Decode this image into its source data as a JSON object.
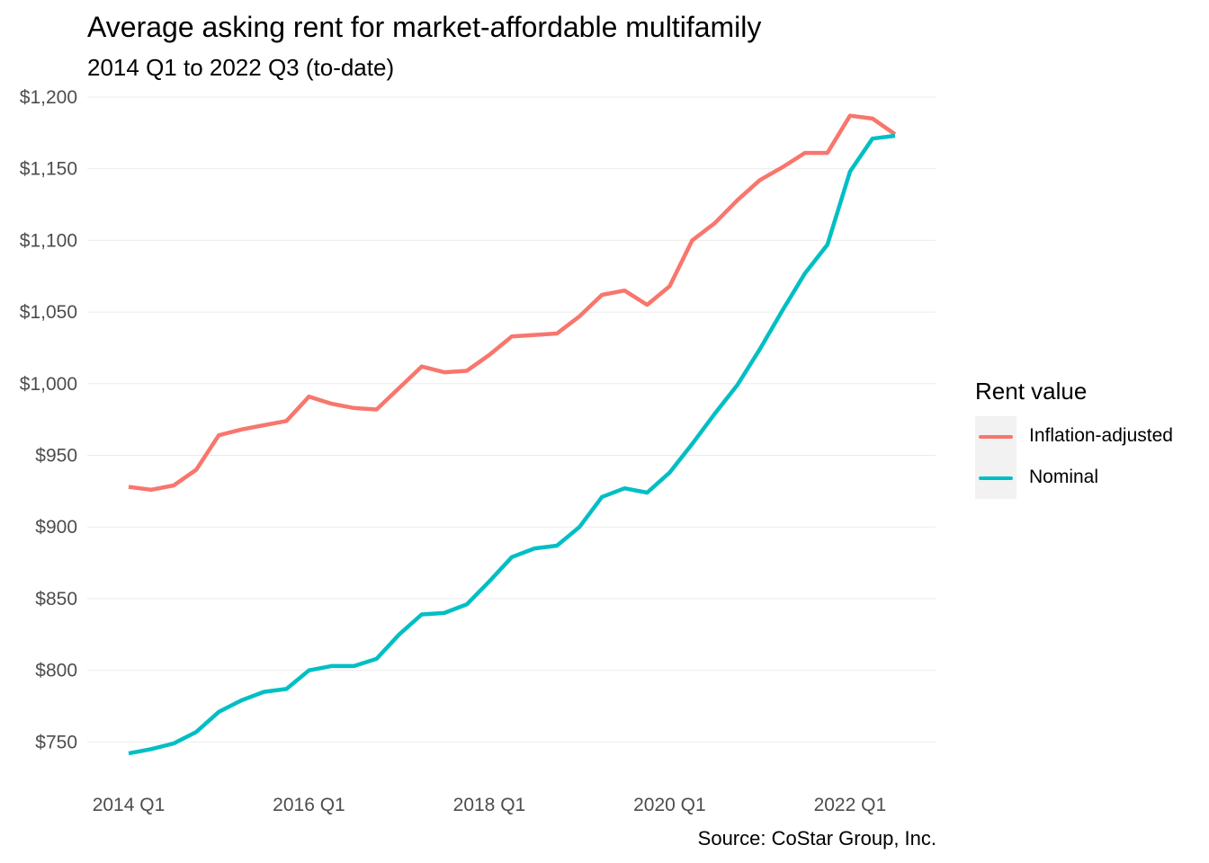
{
  "chart_data": {
    "type": "line",
    "title": "Average asking rent for market-affordable multifamily",
    "subtitle": "2014 Q1 to 2022 Q3 (to-date)",
    "caption": "Source: CoStar Group, Inc.",
    "xlabel": "",
    "ylabel": "",
    "x": [
      "2014 Q1",
      "2014 Q2",
      "2014 Q3",
      "2014 Q4",
      "2015 Q1",
      "2015 Q2",
      "2015 Q3",
      "2015 Q4",
      "2016 Q1",
      "2016 Q2",
      "2016 Q3",
      "2016 Q4",
      "2017 Q1",
      "2017 Q2",
      "2017 Q3",
      "2017 Q4",
      "2018 Q1",
      "2018 Q2",
      "2018 Q3",
      "2018 Q4",
      "2019 Q1",
      "2019 Q2",
      "2019 Q3",
      "2019 Q4",
      "2020 Q1",
      "2020 Q2",
      "2020 Q3",
      "2020 Q4",
      "2021 Q1",
      "2021 Q2",
      "2021 Q3",
      "2021 Q4",
      "2022 Q1",
      "2022 Q2",
      "2022 Q3"
    ],
    "x_ticks": [
      "2014 Q1",
      "2016 Q1",
      "2018 Q1",
      "2020 Q1",
      "2022 Q1"
    ],
    "y_ticks": [
      750,
      800,
      850,
      900,
      950,
      1000,
      1050,
      1100,
      1150,
      1200
    ],
    "y_tick_labels": [
      "$750",
      "$800",
      "$850",
      "$900",
      "$950",
      "$1,000",
      "$1,050",
      "$1,100",
      "$1,150",
      "$1,200"
    ],
    "ylim": [
      722,
      1205
    ],
    "grid": true,
    "legend_title": "Rent value",
    "legend_position": "right",
    "series": [
      {
        "name": "Inflation-adjusted",
        "color": "#f8766d",
        "values": [
          928,
          926,
          929,
          940,
          964,
          968,
          971,
          974,
          991,
          986,
          983,
          982,
          997,
          1012,
          1008,
          1009,
          1020,
          1033,
          1034,
          1035,
          1047,
          1062,
          1065,
          1055,
          1068,
          1100,
          1112,
          1128,
          1142,
          1151,
          1161,
          1161,
          1187,
          1185,
          1174
        ]
      },
      {
        "name": "Nominal",
        "color": "#00bfc4",
        "values": [
          742,
          745,
          749,
          757,
          771,
          779,
          785,
          787,
          800,
          803,
          803,
          808,
          825,
          839,
          840,
          846,
          862,
          879,
          885,
          887,
          900,
          921,
          927,
          924,
          938,
          958,
          979,
          999,
          1024,
          1051,
          1077,
          1097,
          1148,
          1171,
          1173
        ]
      }
    ]
  }
}
